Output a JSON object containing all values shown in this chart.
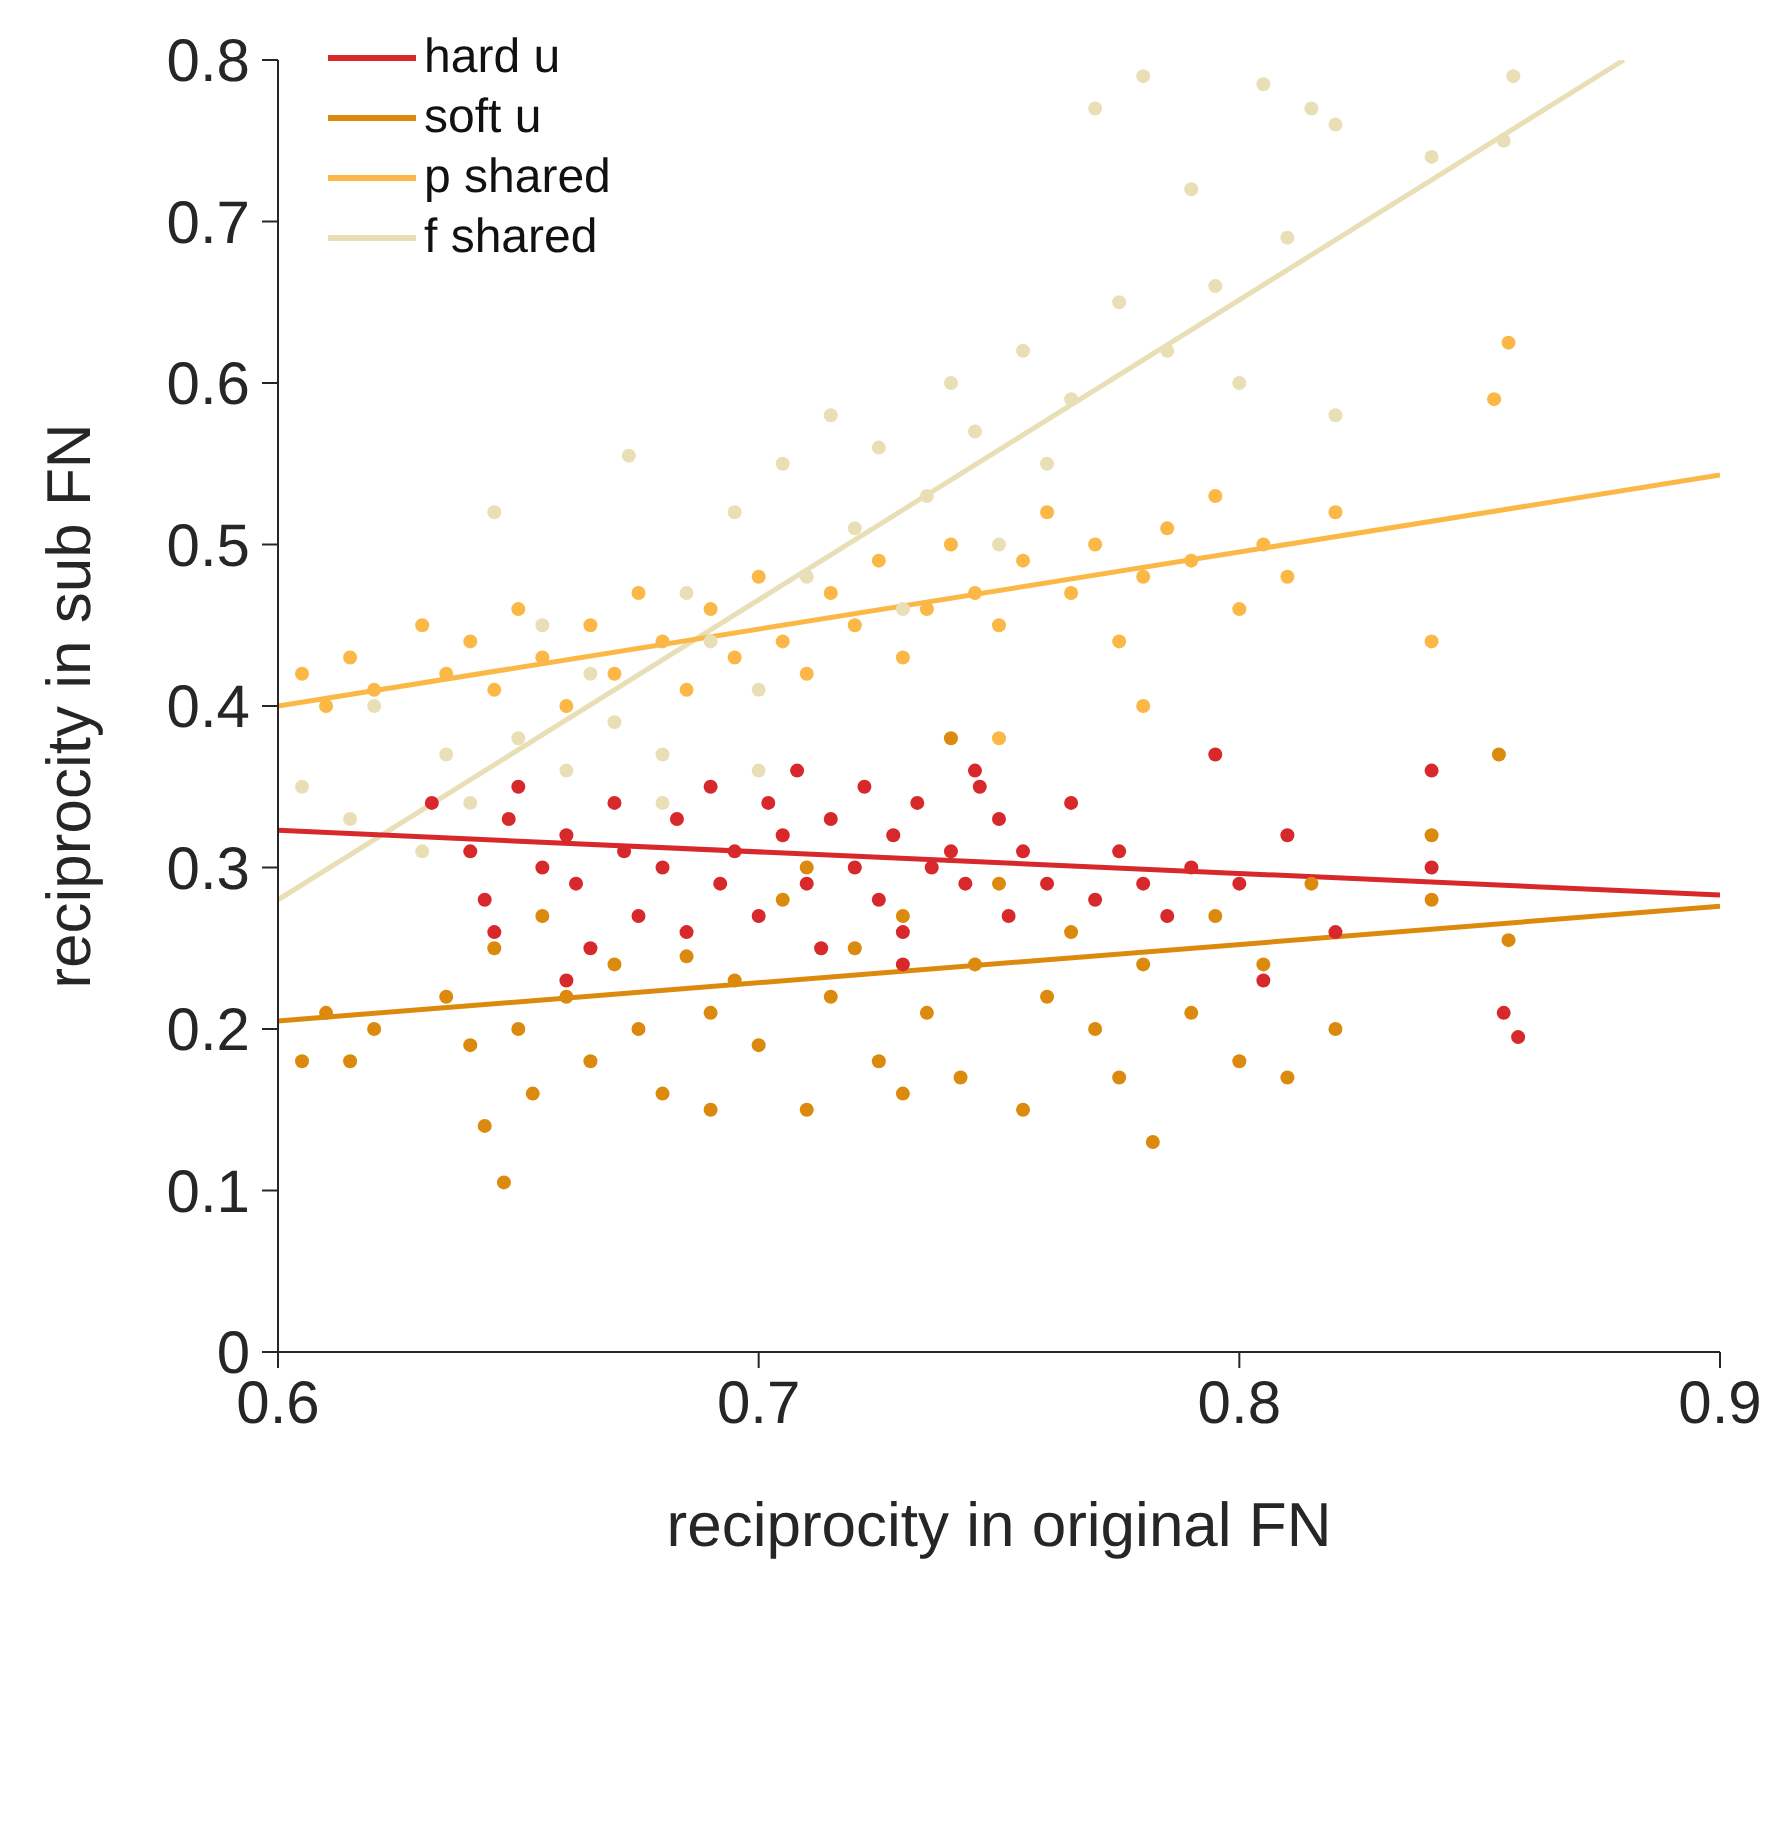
{
  "chart_data": {
    "type": "scatter",
    "xlabel": "reciprocity in original FN",
    "ylabel": "reciprocity in sub FN",
    "xlim": [
      0.6,
      0.9
    ],
    "xticks": [
      0.6,
      0.7,
      0.8,
      0.9
    ],
    "ylim": [
      0,
      0.8
    ],
    "yticks": [
      0,
      0.1,
      0.2,
      0.3,
      0.4,
      0.5,
      0.6,
      0.7,
      0.8
    ],
    "legend": "top left",
    "grid": false,
    "marker": "circle",
    "series": [
      {
        "name": "f shared",
        "type": "scatter",
        "color": "#e9dfb6",
        "x": [
          0.605,
          0.615,
          0.62,
          0.63,
          0.635,
          0.64,
          0.645,
          0.65,
          0.655,
          0.66,
          0.665,
          0.67,
          0.673,
          0.68,
          0.685,
          0.69,
          0.695,
          0.7,
          0.705,
          0.71,
          0.715,
          0.72,
          0.725,
          0.73,
          0.735,
          0.74,
          0.745,
          0.75,
          0.755,
          0.76,
          0.765,
          0.77,
          0.775,
          0.78,
          0.785,
          0.79,
          0.795,
          0.8,
          0.805,
          0.81,
          0.815,
          0.82,
          0.82,
          0.84,
          0.855,
          0.857,
          0.7,
          0.68
        ],
        "values": [
          0.35,
          0.33,
          0.4,
          0.31,
          0.37,
          0.34,
          0.52,
          0.38,
          0.45,
          0.36,
          0.42,
          0.39,
          0.555,
          0.37,
          0.47,
          0.44,
          0.52,
          0.41,
          0.55,
          0.48,
          0.58,
          0.51,
          0.56,
          0.46,
          0.53,
          0.6,
          0.57,
          0.5,
          0.62,
          0.55,
          0.59,
          0.77,
          0.65,
          0.79,
          0.62,
          0.72,
          0.66,
          0.6,
          0.785,
          0.69,
          0.77,
          0.76,
          0.58,
          0.74,
          0.75,
          0.79,
          0.36,
          0.34
        ]
      },
      {
        "name": "p shared",
        "type": "scatter",
        "color": "#fbb846",
        "x": [
          0.605,
          0.61,
          0.615,
          0.62,
          0.63,
          0.635,
          0.64,
          0.645,
          0.65,
          0.655,
          0.66,
          0.665,
          0.67,
          0.675,
          0.68,
          0.685,
          0.69,
          0.695,
          0.7,
          0.705,
          0.71,
          0.715,
          0.72,
          0.725,
          0.73,
          0.735,
          0.74,
          0.745,
          0.75,
          0.755,
          0.76,
          0.765,
          0.77,
          0.775,
          0.78,
          0.785,
          0.79,
          0.795,
          0.8,
          0.805,
          0.81,
          0.82,
          0.84,
          0.853,
          0.856,
          0.75,
          0.78
        ],
        "values": [
          0.42,
          0.4,
          0.43,
          0.41,
          0.45,
          0.42,
          0.44,
          0.41,
          0.46,
          0.43,
          0.4,
          0.45,
          0.42,
          0.47,
          0.44,
          0.41,
          0.46,
          0.43,
          0.48,
          0.44,
          0.42,
          0.47,
          0.45,
          0.49,
          0.43,
          0.46,
          0.5,
          0.47,
          0.45,
          0.49,
          0.52,
          0.47,
          0.5,
          0.44,
          0.48,
          0.51,
          0.49,
          0.53,
          0.46,
          0.5,
          0.48,
          0.52,
          0.44,
          0.59,
          0.625,
          0.38,
          0.4
        ]
      },
      {
        "name": "soft u",
        "type": "scatter",
        "color": "#dc8a0e",
        "x": [
          0.605,
          0.61,
          0.615,
          0.62,
          0.635,
          0.64,
          0.643,
          0.645,
          0.647,
          0.65,
          0.653,
          0.655,
          0.66,
          0.665,
          0.67,
          0.675,
          0.68,
          0.685,
          0.69,
          0.695,
          0.7,
          0.705,
          0.71,
          0.715,
          0.72,
          0.725,
          0.73,
          0.735,
          0.74,
          0.742,
          0.745,
          0.75,
          0.755,
          0.76,
          0.765,
          0.77,
          0.775,
          0.78,
          0.782,
          0.79,
          0.795,
          0.8,
          0.805,
          0.81,
          0.815,
          0.82,
          0.84,
          0.84,
          0.854,
          0.856,
          0.71,
          0.69,
          0.73
        ],
        "values": [
          0.18,
          0.21,
          0.18,
          0.2,
          0.22,
          0.19,
          0.14,
          0.25,
          0.105,
          0.2,
          0.16,
          0.27,
          0.22,
          0.18,
          0.24,
          0.2,
          0.16,
          0.245,
          0.21,
          0.23,
          0.19,
          0.28,
          0.15,
          0.22,
          0.25,
          0.18,
          0.27,
          0.21,
          0.38,
          0.17,
          0.24,
          0.29,
          0.15,
          0.22,
          0.26,
          0.2,
          0.17,
          0.24,
          0.13,
          0.21,
          0.27,
          0.18,
          0.24,
          0.17,
          0.29,
          0.2,
          0.32,
          0.28,
          0.37,
          0.255,
          0.3,
          0.15,
          0.16
        ]
      },
      {
        "name": "hard u",
        "type": "scatter",
        "color": "#d7282b",
        "x": [
          0.632,
          0.64,
          0.643,
          0.645,
          0.648,
          0.65,
          0.655,
          0.66,
          0.662,
          0.665,
          0.67,
          0.672,
          0.675,
          0.68,
          0.683,
          0.685,
          0.69,
          0.692,
          0.695,
          0.7,
          0.702,
          0.705,
          0.708,
          0.71,
          0.713,
          0.715,
          0.72,
          0.722,
          0.725,
          0.728,
          0.73,
          0.733,
          0.736,
          0.74,
          0.743,
          0.746,
          0.75,
          0.752,
          0.755,
          0.76,
          0.765,
          0.77,
          0.775,
          0.78,
          0.785,
          0.79,
          0.795,
          0.8,
          0.805,
          0.81,
          0.82,
          0.84,
          0.84,
          0.855,
          0.858,
          0.745,
          0.73,
          0.66
        ],
        "values": [
          0.34,
          0.31,
          0.28,
          0.26,
          0.33,
          0.35,
          0.3,
          0.32,
          0.29,
          0.25,
          0.34,
          0.31,
          0.27,
          0.3,
          0.33,
          0.26,
          0.35,
          0.29,
          0.31,
          0.27,
          0.34,
          0.32,
          0.36,
          0.29,
          0.25,
          0.33,
          0.3,
          0.35,
          0.28,
          0.32,
          0.26,
          0.34,
          0.3,
          0.31,
          0.29,
          0.35,
          0.33,
          0.27,
          0.31,
          0.29,
          0.34,
          0.28,
          0.31,
          0.29,
          0.27,
          0.3,
          0.37,
          0.29,
          0.23,
          0.32,
          0.26,
          0.36,
          0.3,
          0.21,
          0.195,
          0.36,
          0.24,
          0.23
        ]
      },
      {
        "type": "line",
        "marker": "none",
        "color": "#e9dfb6",
        "x": [
          0.6,
          0.88
        ],
        "values": [
          0.28,
          0.8
        ]
      },
      {
        "type": "line",
        "marker": "none",
        "color": "#fbb846",
        "x": [
          0.6,
          0.9
        ],
        "values": [
          0.4,
          0.543
        ]
      },
      {
        "type": "line",
        "marker": "none",
        "color": "#dc8a0e",
        "x": [
          0.6,
          0.9
        ],
        "values": [
          0.205,
          0.276
        ]
      },
      {
        "type": "line",
        "marker": "none",
        "color": "#d7282b",
        "x": [
          0.6,
          0.9
        ],
        "values": [
          0.323,
          0.283
        ]
      }
    ],
    "line_style": "solid"
  }
}
